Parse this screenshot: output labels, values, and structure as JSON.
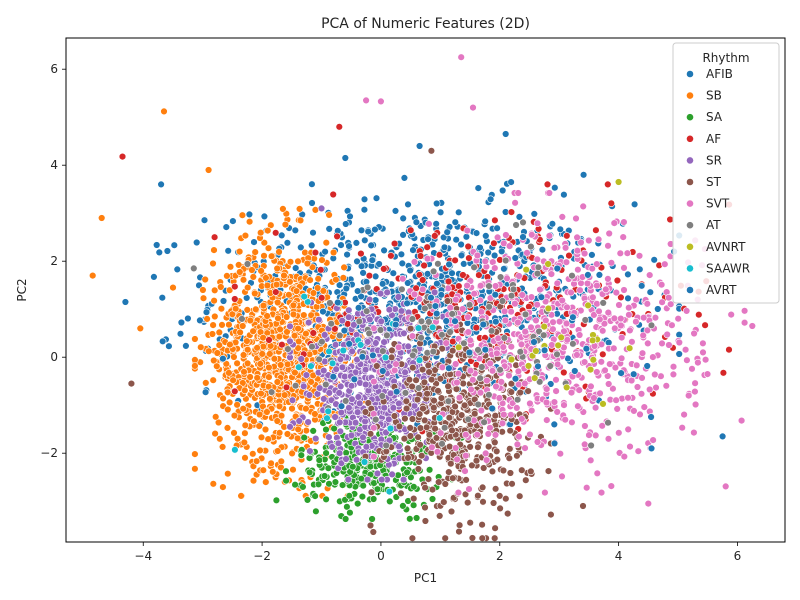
{
  "chart_data": {
    "type": "scatter",
    "title": "PCA of Numeric Features (2D)",
    "xlabel": "PC1",
    "ylabel": "PC2",
    "xlim": [
      -5.3,
      6.8
    ],
    "ylim": [
      -3.85,
      6.65
    ],
    "xticks": [
      -4,
      -2,
      0,
      2,
      4,
      6
    ],
    "yticks": [
      -2,
      0,
      2,
      4,
      6
    ],
    "grid": false,
    "legend": {
      "title": "Rhythm",
      "placement": "top-right"
    },
    "series": [
      {
        "name": "AFIB",
        "color": "#1f77b4",
        "center": [
          0.6,
          1.2
        ],
        "spread": [
          1.7,
          1.0
        ],
        "count": 900,
        "outliers": [
          [
            -4.3,
            1.15
          ],
          [
            -3.7,
            3.6
          ],
          [
            2.1,
            4.65
          ],
          [
            5.75,
            -1.65
          ],
          [
            0.65,
            4.4
          ],
          [
            -0.6,
            4.15
          ]
        ]
      },
      {
        "name": "SB",
        "color": "#ff7f0e",
        "center": [
          -1.7,
          0.1
        ],
        "spread": [
          0.55,
          1.15
        ],
        "count": 1000,
        "outliers": [
          [
            -4.85,
            1.7
          ],
          [
            -4.7,
            2.9
          ],
          [
            -3.65,
            5.12
          ],
          [
            -4.05,
            0.6
          ],
          [
            -3.5,
            1.45
          ],
          [
            -2.9,
            3.9
          ]
        ]
      },
      {
        "name": "SA",
        "color": "#2ca02c",
        "center": [
          -0.2,
          -2.2
        ],
        "spread": [
          0.6,
          0.45
        ],
        "count": 320,
        "outliers": [
          [
            0.6,
            -3.35
          ],
          [
            -1.2,
            -2.4
          ]
        ]
      },
      {
        "name": "AF",
        "color": "#d62728",
        "center": [
          1.7,
          1.0
        ],
        "spread": [
          1.6,
          1.0
        ],
        "count": 260,
        "outliers": [
          [
            -4.35,
            4.18
          ],
          [
            -0.7,
            4.8
          ],
          [
            4.5,
            0.9
          ],
          [
            -2.8,
            2.5
          ]
        ]
      },
      {
        "name": "SR",
        "color": "#9467bd",
        "center": [
          -0.1,
          -0.6
        ],
        "spread": [
          0.55,
          0.75
        ],
        "count": 650,
        "outliers": [
          [
            -1.0,
            3.1
          ]
        ]
      },
      {
        "name": "ST",
        "color": "#8c564b",
        "center": [
          1.3,
          -1.3
        ],
        "spread": [
          0.6,
          0.95
        ],
        "count": 480,
        "outliers": [
          [
            -4.2,
            -0.55
          ],
          [
            0.85,
            4.3
          ],
          [
            3.4,
            -3.1
          ]
        ]
      },
      {
        "name": "SVT",
        "color": "#e377c2",
        "center": [
          3.0,
          0.3
        ],
        "spread": [
          1.2,
          1.2
        ],
        "count": 650,
        "outliers": [
          [
            1.35,
            6.25
          ],
          [
            1.55,
            5.2
          ],
          [
            -0.25,
            5.35
          ],
          [
            0.0,
            5.33
          ],
          [
            6.25,
            0.65
          ],
          [
            4.5,
            -3.05
          ]
        ]
      },
      {
        "name": "AT",
        "color": "#7f7f7f",
        "center": [
          1.3,
          0.5
        ],
        "spread": [
          1.4,
          0.9
        ],
        "count": 110,
        "outliers": [
          [
            -3.15,
            1.85
          ]
        ]
      },
      {
        "name": "AVNRT",
        "color": "#bcbd22",
        "center": [
          3.2,
          0.6
        ],
        "spread": [
          0.8,
          0.9
        ],
        "count": 22,
        "outliers": [
          [
            4.0,
            3.65
          ]
        ]
      },
      {
        "name": "SAAWR",
        "color": "#17becf",
        "center": [
          -0.5,
          -0.2
        ],
        "spread": [
          1.0,
          1.0
        ],
        "count": 22,
        "outliers": []
      },
      {
        "name": "AVRT",
        "color": "#1f77b4",
        "center": [
          1.5,
          0.7
        ],
        "spread": [
          1.6,
          1.0
        ],
        "count": 60,
        "outliers": []
      }
    ]
  }
}
